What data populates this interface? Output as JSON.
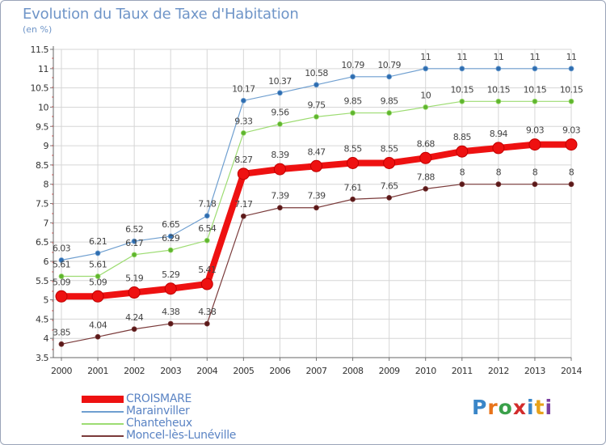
{
  "header": {
    "title": "Evolution du Taux de Taxe d'Habitation",
    "subtitle": "(en %)"
  },
  "logo": {
    "text": "Proxiti",
    "colors": [
      "#3a86c8",
      "#e8731a",
      "#3aa04a",
      "#d22c2c",
      "#3a86c8",
      "#e8a21a",
      "#7b3fa0"
    ]
  },
  "chart_data": {
    "type": "line",
    "title": "Evolution du Taux de Taxe d'Habitation",
    "subtitle": "(en %)",
    "xlabel": "",
    "ylabel": "",
    "x": [
      "2000",
      "2001",
      "2002",
      "2003",
      "2004",
      "2005",
      "2006",
      "2007",
      "2008",
      "2009",
      "2010",
      "2011",
      "2012",
      "2013",
      "2014"
    ],
    "ylim": [
      3.5,
      11.5
    ],
    "yticks": [
      "3.5",
      "4",
      "4.5",
      "5",
      "5.5",
      "6",
      "6.5",
      "7",
      "7.5",
      "8",
      "8.5",
      "9",
      "9.5",
      "10",
      "10.5",
      "11",
      "11.5"
    ],
    "grid": true,
    "legend_position": "bottom-left",
    "series": [
      {
        "name": "CROISMARE",
        "color": "#ee1111",
        "emphasis": true,
        "values": [
          5.09,
          5.09,
          5.19,
          5.29,
          5.41,
          8.27,
          8.39,
          8.47,
          8.55,
          8.55,
          8.68,
          8.85,
          8.94,
          9.03,
          9.03
        ],
        "labels": [
          "5.09",
          "5.09",
          "5.19",
          "5.29",
          "5.41",
          "8.27",
          "8.39",
          "8.47",
          "8.55",
          "8.55",
          "8.68",
          "8.85",
          "8.94",
          "9.03",
          "9.03"
        ]
      },
      {
        "name": "Marainviller",
        "color": "#6f9fd0",
        "marker": "#2e6db0",
        "values": [
          6.03,
          6.21,
          6.52,
          6.65,
          7.18,
          10.17,
          10.37,
          10.58,
          10.79,
          10.79,
          11,
          11,
          11,
          11,
          11
        ],
        "labels": [
          "6.03",
          "6.21",
          "6.52",
          "6.65",
          "7.18",
          "10.17",
          "10.37",
          "10.58",
          "10.79",
          "10.79",
          "11",
          "11",
          "11",
          "11",
          "11"
        ]
      },
      {
        "name": "Chanteheux",
        "color": "#9ddc72",
        "marker": "#5fb52e",
        "values": [
          5.61,
          5.61,
          6.17,
          6.29,
          6.54,
          9.33,
          9.56,
          9.75,
          9.85,
          9.85,
          10,
          10.15,
          10.15,
          10.15,
          10.15
        ],
        "labels": [
          "5.61",
          "5.61",
          "6.17",
          "6.29",
          "6.54",
          "9.33",
          "9.56",
          "9.75",
          "9.85",
          "9.85",
          "10",
          "10.15",
          "10.15",
          "10.15",
          "10.15"
        ]
      },
      {
        "name": "Moncel-lès-Lunéville",
        "color": "#7a3a3a",
        "marker": "#5a1818",
        "values": [
          3.85,
          4.04,
          4.24,
          4.38,
          4.38,
          7.17,
          7.39,
          7.39,
          7.61,
          7.65,
          7.88,
          8,
          8,
          8,
          8
        ],
        "labels": [
          "3.85",
          "4.04",
          "4.24",
          "4.38",
          "4.38",
          "7.17",
          "7.39",
          "7.39",
          "7.61",
          "7.65",
          "7.88",
          "8",
          "8",
          "8",
          "8"
        ]
      }
    ]
  }
}
